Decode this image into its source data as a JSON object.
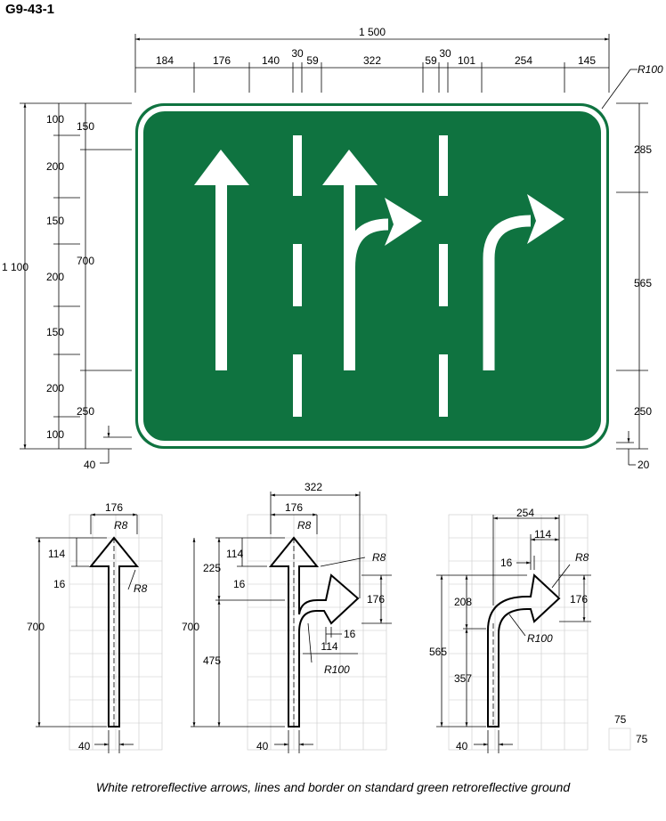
{
  "title": "G9-43-1",
  "caption": "White retroreflective arrows, lines and border on standard green retroreflective ground",
  "colors": {
    "sign_green": "#0f7340",
    "white": "#ffffff",
    "grid": "#c8c8c8"
  },
  "sign": {
    "overall_width": "1 500",
    "overall_height": "1 100",
    "corner_radius": "R100",
    "top_dims": [
      "184",
      "176",
      "140",
      "30",
      "59",
      "322",
      "59",
      "30",
      "101",
      "254",
      "145"
    ],
    "left_outer_dims": [
      "100",
      "200",
      "150",
      "200",
      "150",
      "200",
      "100"
    ],
    "left_inner_dims": [
      "150",
      "700",
      "250"
    ],
    "border_dim": "40",
    "right_dims": [
      "285",
      "565",
      "250"
    ],
    "right_border_dim": "20"
  },
  "details": {
    "straight": {
      "head_width": "176",
      "radius_top": "R8",
      "radius_barb": "R8",
      "head_h": "114",
      "barb": "16",
      "height": "700",
      "stem": "40"
    },
    "straight_right": {
      "total_width": "322",
      "head_width": "176",
      "radius_top": "R8",
      "radius_right": "R8",
      "head_h": "114",
      "barb": "16",
      "dist": "225",
      "height": "700",
      "lower": "475",
      "right_head_h": "176",
      "right_barb": "16",
      "right_head_len": "114",
      "curve_radius": "R100",
      "stem": "40"
    },
    "right": {
      "total_width": "254",
      "head_len": "114",
      "barb": "16",
      "radius": "R8",
      "head_h": "176",
      "upper": "208",
      "height": "565",
      "lower": "357",
      "curve_radius": "R100",
      "stem": "40"
    },
    "grid_scale": {
      "w": "75",
      "h": "75"
    }
  }
}
